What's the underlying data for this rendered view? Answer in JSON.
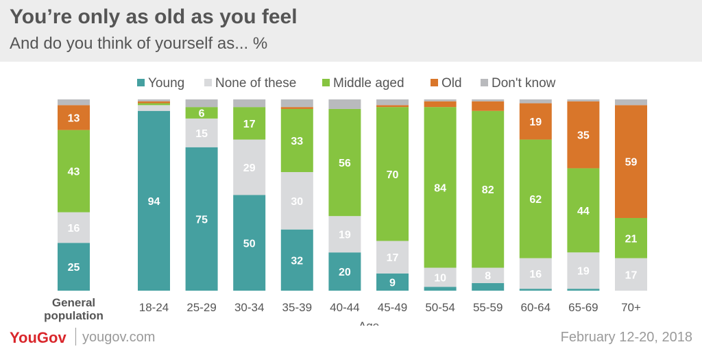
{
  "header": {
    "title": "You’re only as old as you feel",
    "subtitle": "And do you think of yourself as... %"
  },
  "footer": {
    "logo": "YouGov",
    "url": "yougov.com",
    "date": "February 12-20, 2018"
  },
  "colors": {
    "young": "#45a0a0",
    "none": "#d9dadc",
    "middle": "#86c440",
    "old": "#d9762a",
    "dont_know": "#b9babd",
    "text": "#555555"
  },
  "chart_data": {
    "type": "bar",
    "stacked": true,
    "title": "You’re only as old as you feel",
    "subtitle": "And do you think of yourself as... %",
    "xlabel": "Age",
    "ylabel": "",
    "ylim": [
      0,
      100
    ],
    "legend_position": "top",
    "categories": [
      "General population",
      "18-24",
      "25-29",
      "30-34",
      "35-39",
      "40-44",
      "45-49",
      "50-54",
      "55-59",
      "60-64",
      "65-69",
      "70+"
    ],
    "series": [
      {
        "name": "Young",
        "color": "#45a0a0",
        "values": [
          25,
          94,
          75,
          50,
          32,
          20,
          9,
          2,
          4,
          1,
          1,
          0
        ]
      },
      {
        "name": "None of these",
        "color": "#d9dadc",
        "values": [
          16,
          3,
          15,
          29,
          30,
          19,
          17,
          10,
          8,
          16,
          19,
          17
        ]
      },
      {
        "name": "Middle aged",
        "color": "#86c440",
        "values": [
          43,
          1,
          6,
          17,
          33,
          56,
          70,
          84,
          82,
          62,
          44,
          21
        ]
      },
      {
        "name": "Old",
        "color": "#d9762a",
        "values": [
          13,
          1,
          0,
          0,
          1,
          0,
          1,
          3,
          5,
          19,
          35,
          59
        ]
      },
      {
        "name": "Don't know",
        "color": "#b9babd",
        "values": [
          3,
          1,
          4,
          4,
          4,
          5,
          3,
          1,
          1,
          2,
          1,
          3
        ]
      }
    ],
    "label_threshold": 6
  }
}
